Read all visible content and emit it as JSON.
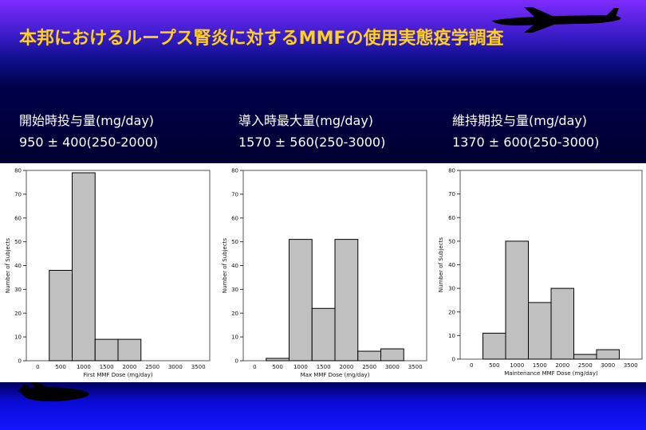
{
  "slide": {
    "title": "本邦におけるループス腎炎に対するMMFの使用実態疫学調査"
  },
  "stats": [
    {
      "label": "開始時投与量(mg/day)",
      "value": "950 ± 400(250-2000)"
    },
    {
      "label": "導入時最大量(mg/day)",
      "value": "1570 ± 560(250-3000)"
    },
    {
      "label": "維持期投与量(mg/day)",
      "value": "1370 ± 600(250-3000)"
    }
  ],
  "colors": {
    "title": "#ffd11a",
    "bar_fill": "#c0c0c0",
    "bar_stroke": "#000000",
    "stat_text": "#ffffff"
  },
  "chart_data": [
    {
      "type": "bar",
      "categories": [
        "0",
        "500",
        "1000",
        "1500",
        "2000",
        "2500",
        "3000",
        "3500"
      ],
      "values": [
        0,
        38,
        79,
        9,
        9,
        0,
        0,
        0
      ],
      "xlabel": "First MMF Dose (mg/day)",
      "ylabel": "Number of Subjects",
      "yticks": [
        0,
        10,
        20,
        30,
        40,
        50,
        60,
        70,
        80
      ],
      "ylim": [
        0,
        80
      ],
      "grid": false
    },
    {
      "type": "bar",
      "categories": [
        "0",
        "500",
        "1000",
        "1500",
        "2000",
        "2500",
        "3000",
        "3500"
      ],
      "values": [
        0,
        1,
        51,
        22,
        51,
        4,
        5,
        0
      ],
      "xlabel": "Max MMF Dose (mg/day)",
      "ylabel": "Number of Subjects",
      "yticks": [
        0,
        10,
        20,
        30,
        40,
        50,
        60,
        70,
        80
      ],
      "ylim": [
        0,
        80
      ],
      "grid": false
    },
    {
      "type": "bar",
      "categories": [
        "0",
        "500",
        "1000",
        "1500",
        "2000",
        "2500",
        "3000",
        "3500"
      ],
      "values": [
        0,
        11,
        50,
        24,
        30,
        2,
        4,
        0
      ],
      "xlabel": "Maintenance MMF Dose (mg/day)",
      "ylabel": "Number of Subjects",
      "yticks": [
        0,
        10,
        20,
        30,
        40,
        50,
        60,
        70,
        80
      ],
      "ylim": [
        0,
        80
      ],
      "grid": false
    }
  ]
}
